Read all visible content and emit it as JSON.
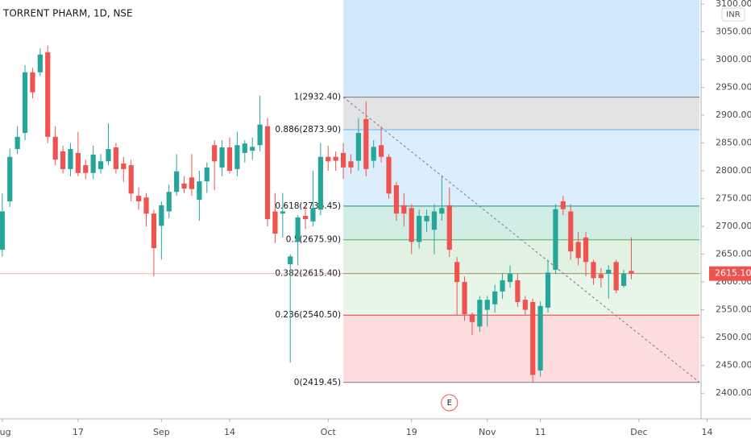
{
  "chart_data": {
    "type": "candlestick",
    "title": "TORRENT PHARM, 1D, NSE",
    "currency": "INR",
    "up_color": "#26a69a",
    "down_color": "#ef5350",
    "open": [
      2658,
      2745,
      2839,
      2868,
      2977,
      2977,
      3013,
      2861,
      2835,
      2803,
      2832,
      2810,
      2796,
      2803,
      2817,
      2842,
      2813,
      2810,
      2755,
      2752,
      2723,
      2701,
      2727,
      2762,
      2777,
      2788,
      2748,
      2781,
      2846,
      2806,
      2842,
      2803,
      2832,
      2836,
      2846,
      2880,
      2727,
      2723,
      2632,
      2672,
      2719,
      2709,
      2730,
      2825,
      2825,
      2832,
      2817,
      2818,
      2893,
      2818,
      2846,
      2825,
      2774,
      2738,
      2733,
      2672,
      2709,
      2694,
      2723,
      2738,
      2636,
      2600,
      2542,
      2520,
      2550,
      2560,
      2583,
      2600,
      2603,
      2568,
      2564,
      2441,
      2554,
      2622,
      2745,
      2727,
      2672,
      2680,
      2636,
      2614,
      2615,
      2636,
      2593,
      2620
    ],
    "high": [
      2759,
      2840,
      2880,
      2990,
      2985,
      3020,
      3025,
      2880,
      2845,
      2850,
      2870,
      2820,
      2845,
      2830,
      2885,
      2850,
      2825,
      2820,
      2770,
      2760,
      2730,
      2745,
      2775,
      2830,
      2790,
      2830,
      2800,
      2815,
      2855,
      2855,
      2860,
      2870,
      2855,
      2860,
      2935,
      2895,
      2760,
      2760,
      2650,
      2720,
      2740,
      2800,
      2850,
      2845,
      2835,
      2850,
      2830,
      2895,
      2925,
      2855,
      2880,
      2830,
      2780,
      2760,
      2740,
      2730,
      2730,
      2740,
      2790,
      2770,
      2645,
      2610,
      2545,
      2575,
      2575,
      2595,
      2615,
      2630,
      2615,
      2575,
      2570,
      2565,
      2640,
      2740,
      2755,
      2740,
      2690,
      2690,
      2640,
      2625,
      2630,
      2640,
      2622,
      2680
    ],
    "low": [
      2646,
      2735,
      2830,
      2855,
      2930,
      2970,
      2850,
      2810,
      2795,
      2790,
      2790,
      2785,
      2785,
      2795,
      2810,
      2795,
      2780,
      2745,
      2730,
      2700,
      2610,
      2640,
      2715,
      2755,
      2760,
      2755,
      2710,
      2760,
      2765,
      2790,
      2795,
      2790,
      2815,
      2820,
      2835,
      2700,
      2670,
      2680,
      2455,
      2630,
      2695,
      2700,
      2720,
      2800,
      2800,
      2785,
      2795,
      2800,
      2790,
      2805,
      2815,
      2750,
      2710,
      2700,
      2650,
      2660,
      2690,
      2650,
      2710,
      2645,
      2540,
      2530,
      2505,
      2510,
      2520,
      2545,
      2570,
      2590,
      2555,
      2540,
      2420,
      2430,
      2545,
      2615,
      2720,
      2640,
      2630,
      2610,
      2595,
      2590,
      2570,
      2580,
      2590,
      2605
    ],
    "close": [
      2727,
      2825,
      2861,
      2977,
      2941,
      3009,
      2861,
      2820,
      2803,
      2839,
      2796,
      2796,
      2829,
      2817,
      2839,
      2803,
      2803,
      2759,
      2745,
      2723,
      2661,
      2738,
      2762,
      2799,
      2768,
      2767,
      2781,
      2806,
      2817,
      2842,
      2800,
      2846,
      2849,
      2843,
      2883,
      2713,
      2687,
      2727,
      2646,
      2716,
      2713,
      2733,
      2825,
      2817,
      2818,
      2806,
      2806,
      2868,
      2803,
      2843,
      2825,
      2759,
      2723,
      2723,
      2672,
      2719,
      2719,
      2727,
      2733,
      2658,
      2600,
      2542,
      2528,
      2568,
      2568,
      2583,
      2603,
      2615,
      2564,
      2550,
      2433,
      2557,
      2617,
      2731,
      2731,
      2655,
      2643,
      2636,
      2607,
      2607,
      2622,
      2585,
      2615,
      2615.1
    ],
    "xlim": [
      -0.3,
      92.2
    ],
    "xticks": [
      {
        "value": 0,
        "label": "Aug"
      },
      {
        "value": 10,
        "label": "17"
      },
      {
        "value": 21,
        "label": "Sep"
      },
      {
        "value": 30,
        "label": "14"
      },
      {
        "value": 43,
        "label": "Oct"
      },
      {
        "value": 54,
        "label": "19"
      },
      {
        "value": 64,
        "label": "Nov"
      },
      {
        "value": 71,
        "label": "11"
      },
      {
        "value": 84,
        "label": "Dec"
      },
      {
        "value": 93,
        "label": "14"
      }
    ],
    "ylim": [
      2354,
      3107
    ],
    "yticks": [
      {
        "value": 2400,
        "label": "2400.00"
      },
      {
        "value": 2450,
        "label": "2450.00"
      },
      {
        "value": 2500,
        "label": "2500.00"
      },
      {
        "value": 2550,
        "label": "2550.00"
      },
      {
        "value": 2600,
        "label": "2600.00"
      },
      {
        "value": 2650,
        "label": "2650.00"
      },
      {
        "value": 2700,
        "label": "2700.00"
      },
      {
        "value": 2750,
        "label": "2750.00"
      },
      {
        "value": 2800,
        "label": "2800.00"
      },
      {
        "value": 2850,
        "label": "2850.00"
      },
      {
        "value": 2900,
        "label": "2900.00"
      },
      {
        "value": 2950,
        "label": "2950.00"
      },
      {
        "value": 3000,
        "label": "3000.00"
      },
      {
        "value": 3050,
        "label": "3050.00"
      },
      {
        "value": 3100,
        "label": "3100.00"
      }
    ],
    "last_price": {
      "value": 2615.1,
      "label": "2615.10",
      "color": "#ef5350"
    },
    "fib_start": 45,
    "fib_end": 92,
    "fib_top_fill": "#d3e7fb",
    "fib_levels": [
      {
        "label": "1(2932.40)",
        "value": 2932.4,
        "color": "#787b86",
        "fill": "#e3e3e5"
      },
      {
        "label": "0.886(2873.90)",
        "value": 2873.9,
        "color": "#64b5f6",
        "fill": "#dcedfb"
      },
      {
        "label": "0.618(2736.45)",
        "value": 2736.45,
        "color": "#089981",
        "fill": "#d2ece6"
      },
      {
        "label": "0.5(2675.90)",
        "value": 2675.9,
        "color": "#4caf50",
        "fill": "#e1f2e2"
      },
      {
        "label": "0.382(2615.40)",
        "value": 2615.4,
        "color": "#81c784",
        "fill": "#e8f5e9"
      },
      {
        "label": "0.236(2540.50)",
        "value": 2540.5,
        "color": "#f23645",
        "fill": "#fcdcdc"
      },
      {
        "label": "0(2419.45)",
        "value": 2419.45,
        "color": "#787b86"
      }
    ],
    "events": [
      {
        "label": "E",
        "x": 59,
        "color": "#ef5350"
      }
    ]
  }
}
